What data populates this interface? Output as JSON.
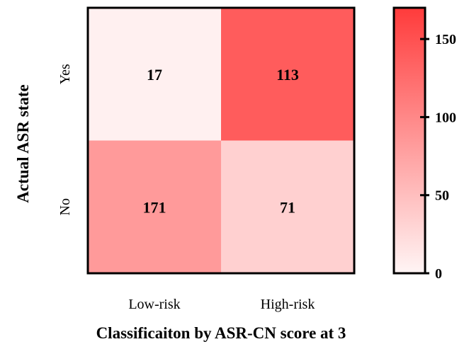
{
  "chart_data": {
    "type": "heatmap",
    "title": "",
    "xlabel": "Classificaiton by ASR-CN score at 3",
    "ylabel": "Actual ASR state",
    "x_categories": [
      "Low-risk",
      "High-risk"
    ],
    "y_categories": [
      "Yes",
      "No"
    ],
    "values": [
      [
        17,
        113
      ],
      [
        171,
        71
      ]
    ],
    "colorbar": {
      "range": [
        0,
        170
      ],
      "ticks": [
        "0",
        "50",
        "100",
        "150"
      ],
      "color_low": "#fff5f5",
      "color_high": "#ff3b3b"
    },
    "cell_colors": [
      [
        "#fff0f0",
        "#ff5c5c"
      ],
      [
        "#ff9a9a",
        "#ffd0d0"
      ]
    ]
  }
}
